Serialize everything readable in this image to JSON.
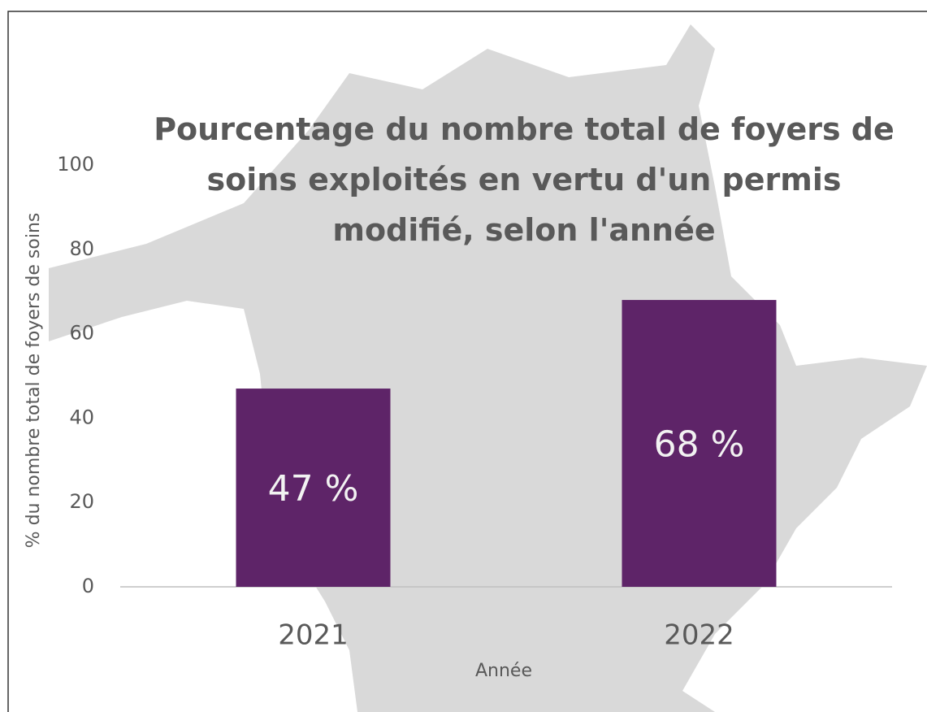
{
  "chart_data": {
    "type": "bar",
    "title": "Pourcentage du nombre total de foyers de soins exploités en vertu d'un permis modifié, selon l'année",
    "categories": [
      "2021",
      "2022"
    ],
    "values": [
      47,
      68
    ],
    "value_labels": [
      "47 %",
      "68 %"
    ],
    "color": "#5e2468",
    "xlabel": "Année",
    "ylabel": "% du nombre total de foyers de soins",
    "ylim": [
      0,
      100
    ],
    "yticks": [
      0,
      20,
      40,
      60,
      80,
      100
    ],
    "grid": false
  }
}
